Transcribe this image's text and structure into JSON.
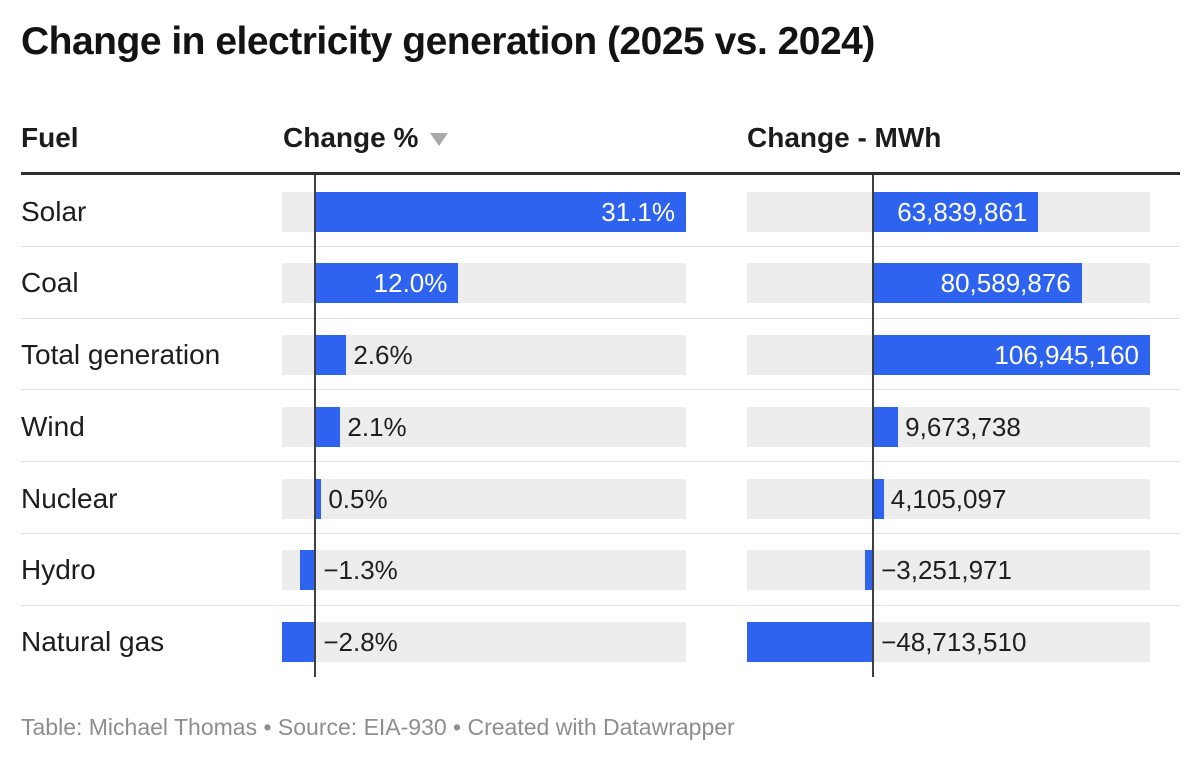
{
  "title": "Change in electricity generation (2025 vs. 2024)",
  "header": {
    "fuel": "Fuel",
    "change_pct": "Change %",
    "change_mwh": "Change - MWh",
    "sort_icon": "triangle-down",
    "sorted_column": "Change %",
    "sort_direction": "descending"
  },
  "footer": "Table: Michael Thomas • Source: EIA-930 • Created with Datawrapper",
  "colors": {
    "bar_fill": "#2d63ee",
    "track_fill": "#ededed",
    "zero_line": "#3f3f3f",
    "header_border": "#2e2e2e",
    "row_separator": "#e2e2e2",
    "inside_label": "#ffffff",
    "outside_label": "#1f1f1f",
    "footer_text": "#8e8e8e",
    "sort_icon": "#a9a9a9"
  },
  "chart_data": {
    "type": "table",
    "bar_columns": [
      "Change %",
      "Change - MWh"
    ],
    "columns": [
      "Fuel",
      "Change %",
      "Change - MWh"
    ],
    "axis_note": "bars scaled per column from data min to data max, zero baseline marked",
    "pct_range": [
      -2.8,
      31.1
    ],
    "mwh_range": [
      -48713510,
      106945160
    ],
    "rows": [
      {
        "fuel": "Solar",
        "change_pct": 31.1,
        "change_pct_label": "31.1%",
        "change_mwh": 63839861,
        "change_mwh_label": "63,839,861"
      },
      {
        "fuel": "Coal",
        "change_pct": 12.0,
        "change_pct_label": "12.0%",
        "change_mwh": 80589876,
        "change_mwh_label": "80,589,876"
      },
      {
        "fuel": "Total generation",
        "change_pct": 2.6,
        "change_pct_label": "2.6%",
        "change_mwh": 106945160,
        "change_mwh_label": "106,945,160"
      },
      {
        "fuel": "Wind",
        "change_pct": 2.1,
        "change_pct_label": "2.1%",
        "change_mwh": 9673738,
        "change_mwh_label": "9,673,738"
      },
      {
        "fuel": "Nuclear",
        "change_pct": 0.5,
        "change_pct_label": "0.5%",
        "change_mwh": 4105097,
        "change_mwh_label": "4,105,097"
      },
      {
        "fuel": "Hydro",
        "change_pct": -1.3,
        "change_pct_label": "−1.3%",
        "change_mwh": -3251971,
        "change_mwh_label": "−3,251,971"
      },
      {
        "fuel": "Natural gas",
        "change_pct": -2.8,
        "change_pct_label": "−2.8%",
        "change_mwh": -48713510,
        "change_mwh_label": "−48,713,510"
      }
    ]
  }
}
